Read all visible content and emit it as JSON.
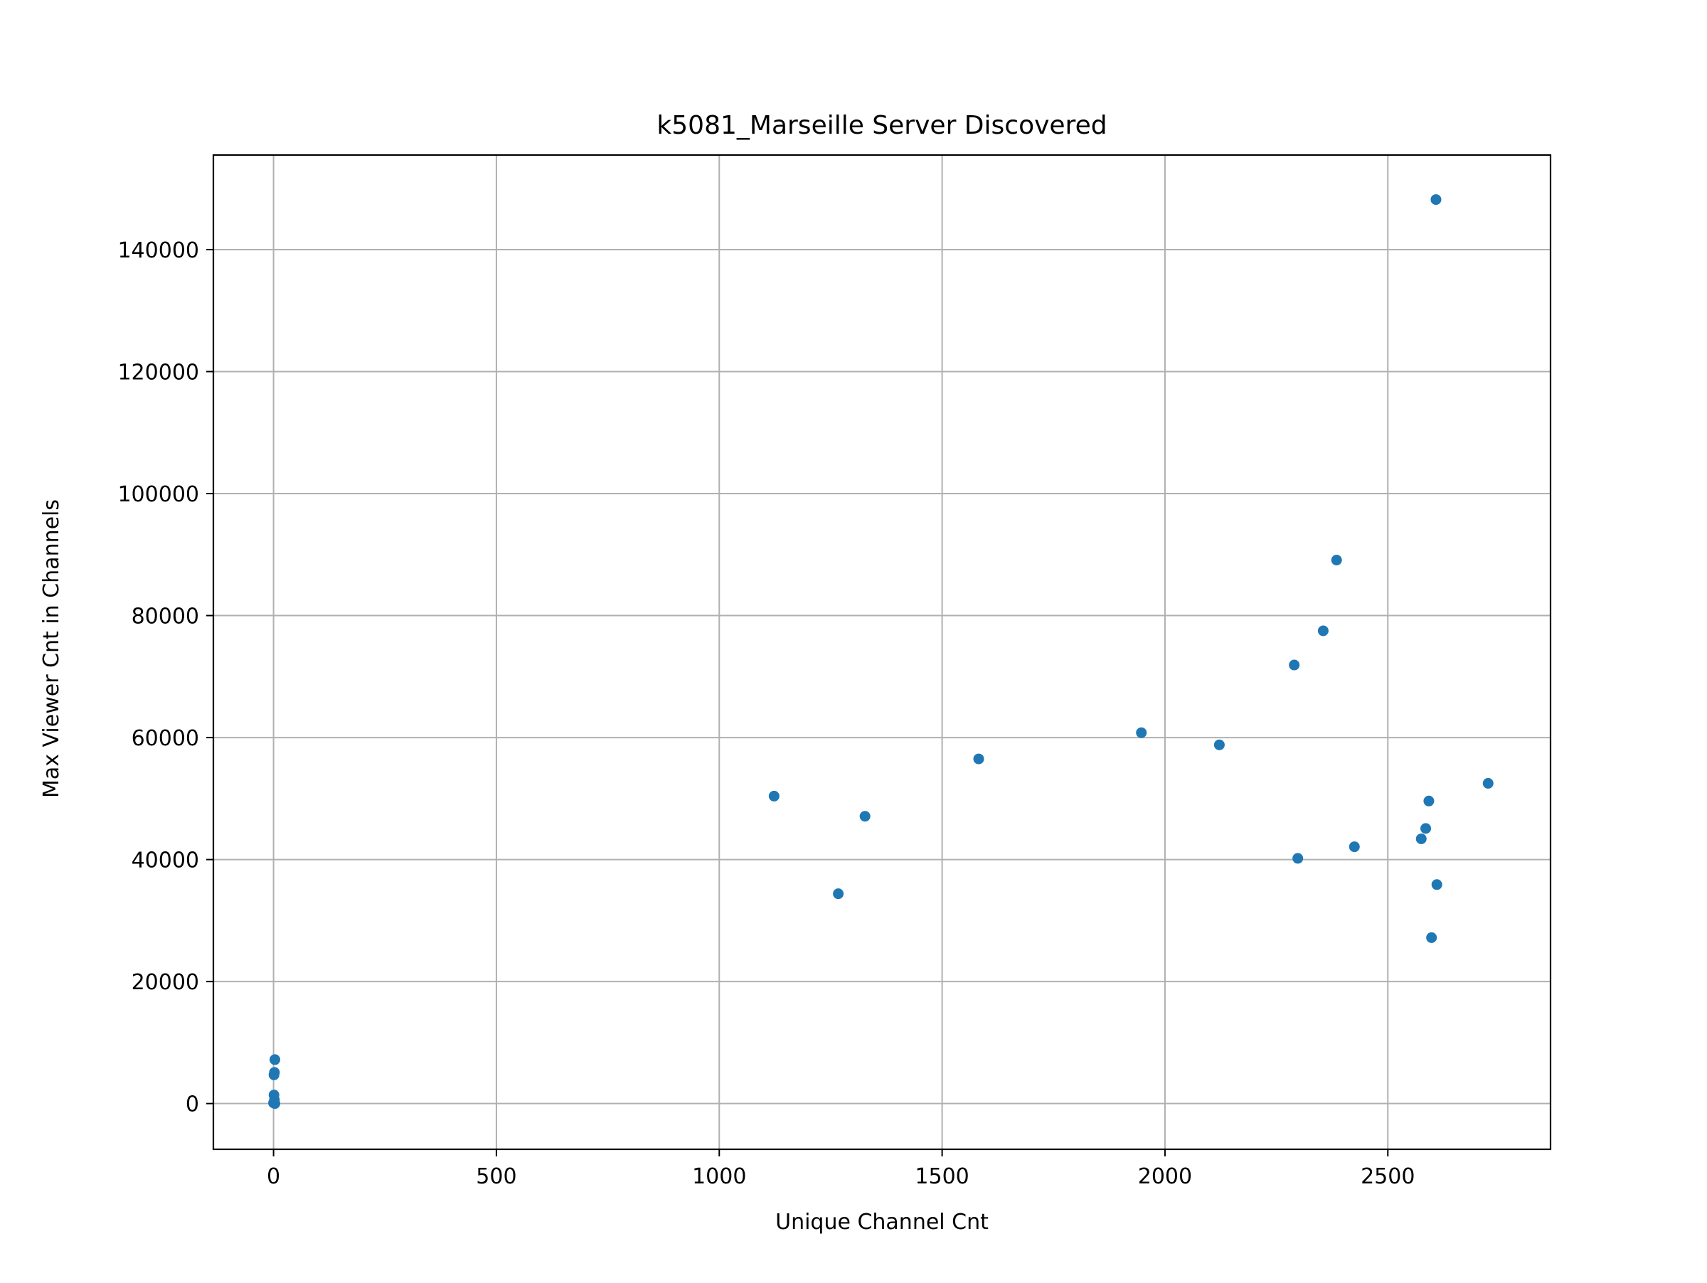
{
  "chart_data": {
    "type": "scatter",
    "title": "k5081_Marseille Server Discovered",
    "xlabel": "Unique Channel Cnt",
    "ylabel": "Max Viewer Cnt in Channels",
    "xlim": [
      -135,
      2865
    ],
    "ylim": [
      -7500,
      155500
    ],
    "xticks": [
      0,
      500,
      1000,
      1500,
      2000,
      2500
    ],
    "yticks": [
      0,
      20000,
      40000,
      60000,
      80000,
      100000,
      120000,
      140000
    ],
    "grid": true,
    "legend": "none",
    "marker_color": "#1f77b4",
    "grid_color": "#b0b0b0",
    "points": [
      {
        "x": 3,
        "y": 7200
      },
      {
        "x": 2,
        "y": 5100
      },
      {
        "x": 1,
        "y": 4700
      },
      {
        "x": 1,
        "y": 1400
      },
      {
        "x": 2,
        "y": 600
      },
      {
        "x": 0,
        "y": 100
      },
      {
        "x": 3,
        "y": 0
      },
      {
        "x": 1123,
        "y": 50400
      },
      {
        "x": 1267,
        "y": 34400
      },
      {
        "x": 1327,
        "y": 47100
      },
      {
        "x": 1582,
        "y": 56500
      },
      {
        "x": 1947,
        "y": 60800
      },
      {
        "x": 2122,
        "y": 58800
      },
      {
        "x": 2290,
        "y": 71900
      },
      {
        "x": 2298,
        "y": 40200
      },
      {
        "x": 2355,
        "y": 77500
      },
      {
        "x": 2385,
        "y": 89100
      },
      {
        "x": 2425,
        "y": 42100
      },
      {
        "x": 2575,
        "y": 43400
      },
      {
        "x": 2585,
        "y": 45100
      },
      {
        "x": 2592,
        "y": 49600
      },
      {
        "x": 2598,
        "y": 27200
      },
      {
        "x": 2608,
        "y": 148200
      },
      {
        "x": 2610,
        "y": 35900
      },
      {
        "x": 2725,
        "y": 52500
      }
    ]
  }
}
